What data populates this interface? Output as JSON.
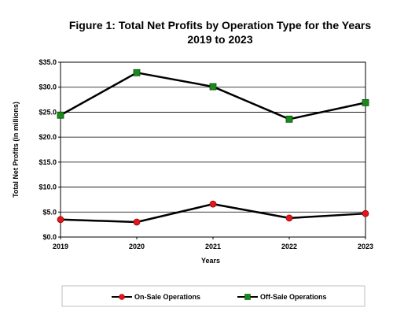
{
  "chart_data": {
    "type": "line",
    "title_line1": "Figure 1:  Total Net Profits by Operation Type for the Years",
    "title_line2": "2019 to 2023",
    "xlabel": "Years",
    "ylabel": "Total Net Profits (in millions)",
    "categories": [
      "2019",
      "2020",
      "2021",
      "2022",
      "2023"
    ],
    "ylim": [
      0,
      35
    ],
    "y_ticks": [
      "$0.0",
      "$5.0",
      "$10.0",
      "$15.0",
      "$20.0",
      "$25.0",
      "$30.0",
      "$35.0"
    ],
    "grid": true,
    "legend_position": "bottom",
    "series": [
      {
        "name": "On-Sale Operations",
        "values": [
          3.5,
          3.0,
          6.6,
          3.8,
          4.7
        ],
        "color": "#e8141c",
        "marker": "circle"
      },
      {
        "name": "Off-Sale Operations",
        "values": [
          24.4,
          32.9,
          30.1,
          23.6,
          26.9
        ],
        "color": "#1a8a1a",
        "marker": "square"
      }
    ]
  }
}
